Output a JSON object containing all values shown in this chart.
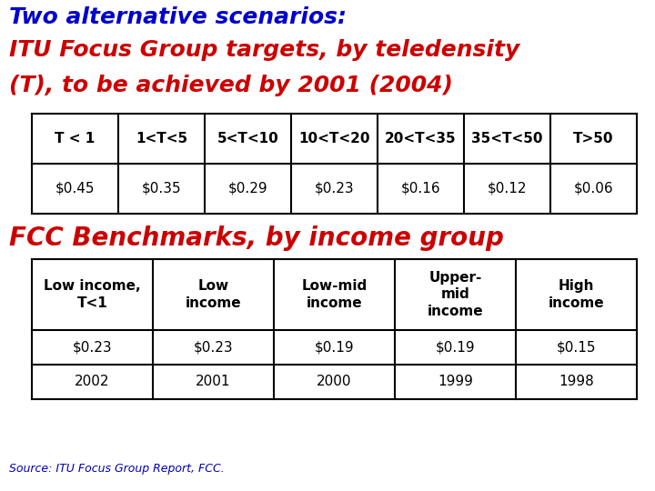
{
  "title_line1": "Two alternative scenarios:",
  "title_line2": "ITU Focus Group targets, by teledensity",
  "title_line3": "(T), to be achieved by 2001 (2004)",
  "title_line1_color": "#0000CC",
  "title_line23_color": "#CC0000",
  "title_fontsize": 18,
  "fcc_title": "FCC Benchmarks, by income group",
  "fcc_title_color": "#CC0000",
  "fcc_title_fontsize": 20,
  "source_text": "Source: ITU Focus Group Report, FCC.",
  "source_color": "#0000BB",
  "source_fontsize": 9,
  "table1_headers": [
    "T < 1",
    "1<T<5",
    "5<T<10",
    "10<T<20",
    "20<T<35",
    "35<T<50",
    "T>50"
  ],
  "table1_values": [
    "$0.45",
    "$0.35",
    "$0.29",
    "$0.23",
    "$0.16",
    "$0.12",
    "$0.06"
  ],
  "table2_headers": [
    "Low income,\nT<1",
    "Low\nincome",
    "Low-mid\nincome",
    "Upper-\nmid\nincome",
    "High\nincome"
  ],
  "table2_row1": [
    "$0.23",
    "$0.23",
    "$0.19",
    "$0.19",
    "$0.15"
  ],
  "table2_row2": [
    "2002",
    "2001",
    "2000",
    "1999",
    "1998"
  ],
  "bg_color": "#FFFFFF",
  "table_border_color": "#000000",
  "cell_text_color": "#000000",
  "header_text_color": "#000000",
  "table1_header_fontsize": 11,
  "table1_value_fontsize": 11,
  "table2_header_fontsize": 11,
  "table2_value_fontsize": 11
}
